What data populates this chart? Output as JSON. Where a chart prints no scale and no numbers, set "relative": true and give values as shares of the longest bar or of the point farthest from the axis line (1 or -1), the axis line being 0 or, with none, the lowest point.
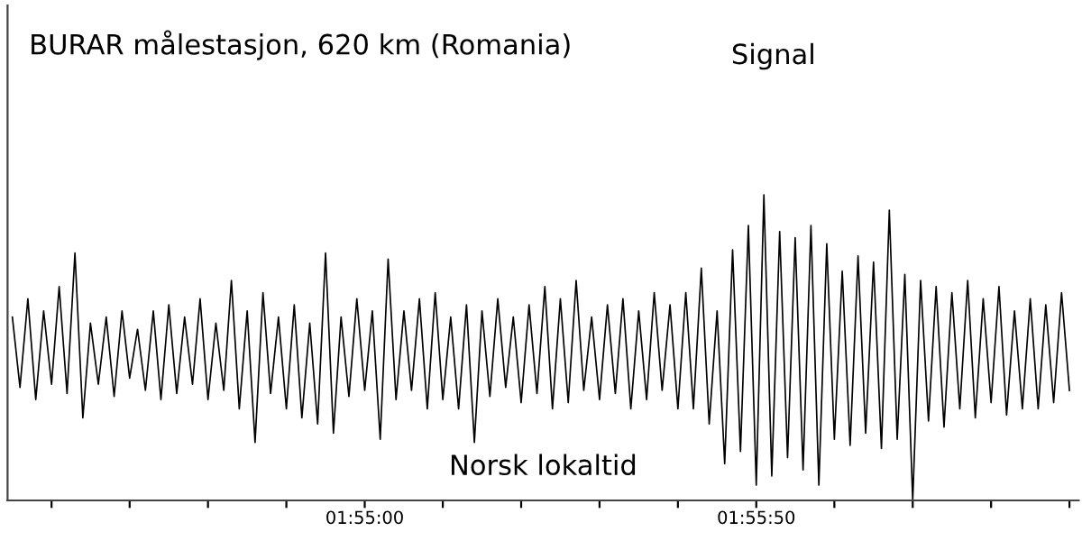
{
  "chart_data": {
    "type": "line",
    "relative": true,
    "title": "BURAR målestasjon, 620 km (Romania)",
    "xlabel": "Norsk lokaltid",
    "annotations": [
      "Signal"
    ],
    "xlim": [
      1.904,
      1.942
    ],
    "xticks": [
      {
        "value": 1.90556,
        "label": null
      },
      {
        "value": 1.90833,
        "label": null
      },
      {
        "value": 1.91111,
        "label": null
      },
      {
        "value": 1.91389,
        "label": null
      },
      {
        "value": 1.91667,
        "label": "01:55:00"
      },
      {
        "value": 1.91944,
        "label": null
      },
      {
        "value": 1.92222,
        "label": null
      },
      {
        "value": 1.925,
        "label": null
      },
      {
        "value": 1.92778,
        "label": null
      },
      {
        "value": 1.93056,
        "label": "01:55:50"
      },
      {
        "value": 1.93333,
        "label": null
      },
      {
        "value": 1.93611,
        "label": null
      },
      {
        "value": 1.93889,
        "label": null
      },
      {
        "value": 1.94167,
        "label": null
      }
    ],
    "grid": false,
    "legend": false,
    "series": [
      {
        "color": "#000000",
        "x": [
          1.90417,
          1.90444,
          1.90472,
          1.905,
          1.90528,
          1.90556,
          1.90583,
          1.90611,
          1.90639,
          1.90667,
          1.90694,
          1.90722,
          1.9075,
          1.90778,
          1.90806,
          1.90833,
          1.90861,
          1.90889,
          1.90917,
          1.90944,
          1.90972,
          1.91,
          1.91028,
          1.91056,
          1.91083,
          1.91111,
          1.91139,
          1.91167,
          1.91194,
          1.91222,
          1.9125,
          1.91278,
          1.91306,
          1.91333,
          1.91361,
          1.91389,
          1.91417,
          1.91444,
          1.91472,
          1.915,
          1.91528,
          1.91556,
          1.91583,
          1.91611,
          1.91639,
          1.91667,
          1.91694,
          1.91722,
          1.9175,
          1.91778,
          1.91806,
          1.91833,
          1.91861,
          1.91889,
          1.91917,
          1.91944,
          1.91972,
          1.92,
          1.92028,
          1.92056,
          1.92083,
          1.92111,
          1.92139,
          1.92167,
          1.92194,
          1.92222,
          1.9225,
          1.92278,
          1.92306,
          1.92333,
          1.92361,
          1.92389,
          1.92417,
          1.92444,
          1.92472,
          1.925,
          1.92528,
          1.92556,
          1.92583,
          1.92611,
          1.92639,
          1.92667,
          1.92694,
          1.92722,
          1.9275,
          1.92778,
          1.92806,
          1.92833,
          1.92861,
          1.92889,
          1.92917,
          1.92944,
          1.92972,
          1.93,
          1.93028,
          1.93056,
          1.93083,
          1.93111,
          1.93139,
          1.93167,
          1.93194,
          1.93222,
          1.9325,
          1.93278,
          1.93306,
          1.93333,
          1.93361,
          1.93389,
          1.93417,
          1.93444,
          1.93472,
          1.935,
          1.93528,
          1.93556,
          1.93583,
          1.93611,
          1.93639,
          1.93667,
          1.93694,
          1.93722,
          1.9375,
          1.93778,
          1.93806,
          1.93833,
          1.93861,
          1.93889,
          1.93917,
          1.93944,
          1.93972,
          1.94,
          1.94028,
          1.94056,
          1.94083,
          1.94111,
          1.94139,
          1.94167
        ],
        "values": [
          0.6,
          0.37,
          0.66,
          0.33,
          0.62,
          0.38,
          0.7,
          0.35,
          0.81,
          0.27,
          0.58,
          0.38,
          0.6,
          0.34,
          0.62,
          0.4,
          0.56,
          0.36,
          0.62,
          0.33,
          0.64,
          0.35,
          0.6,
          0.38,
          0.66,
          0.33,
          0.58,
          0.36,
          0.72,
          0.3,
          0.62,
          0.19,
          0.68,
          0.35,
          0.6,
          0.3,
          0.64,
          0.27,
          0.58,
          0.25,
          0.81,
          0.22,
          0.6,
          0.34,
          0.66,
          0.36,
          0.62,
          0.2,
          0.79,
          0.33,
          0.62,
          0.36,
          0.66,
          0.3,
          0.68,
          0.33,
          0.6,
          0.3,
          0.64,
          0.19,
          0.62,
          0.34,
          0.66,
          0.37,
          0.6,
          0.32,
          0.64,
          0.35,
          0.7,
          0.3,
          0.66,
          0.32,
          0.72,
          0.36,
          0.6,
          0.33,
          0.64,
          0.35,
          0.66,
          0.3,
          0.62,
          0.33,
          0.68,
          0.36,
          0.64,
          0.3,
          0.68,
          0.3,
          0.76,
          0.25,
          0.62,
          0.12,
          0.82,
          0.16,
          0.9,
          0.05,
          1.0,
          0.08,
          0.88,
          0.14,
          0.86,
          0.1,
          0.9,
          0.05,
          0.84,
          0.2,
          0.75,
          0.18,
          0.8,
          0.22,
          0.78,
          0.17,
          0.95,
          0.2,
          0.74,
          0.0,
          0.72,
          0.26,
          0.7,
          0.24,
          0.68,
          0.3,
          0.72,
          0.27,
          0.66,
          0.32,
          0.7,
          0.28,
          0.62,
          0.3,
          0.66,
          0.3,
          0.64,
          0.32,
          0.68,
          0.36
        ]
      }
    ]
  }
}
